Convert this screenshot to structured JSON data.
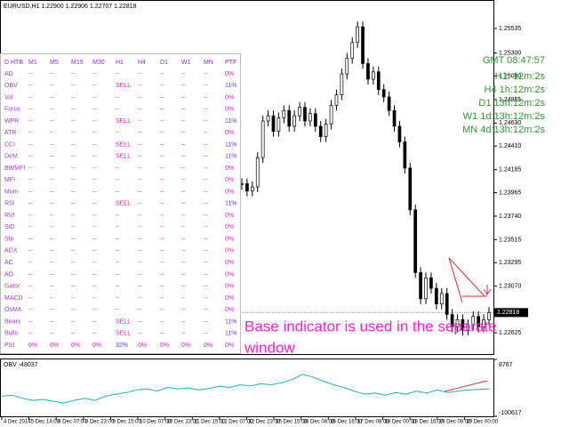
{
  "header": {
    "title": "EURUSD,H1  1.22900 1.22906 1.22707 1.22818"
  },
  "table": {
    "columns": [
      "D HTB",
      "M1",
      "M5",
      "M15",
      "M30",
      "H1",
      "H4",
      "D1",
      "W1",
      "MN",
      "PTF"
    ],
    "rows": [
      [
        "AD",
        "--",
        "--",
        "--",
        "--",
        "--",
        "--",
        "--",
        "--",
        "--",
        "0%"
      ],
      [
        "OBV",
        "--",
        "--",
        "--",
        "--",
        "SELL",
        "--",
        "--",
        "--",
        "--",
        "11%"
      ],
      [
        "Vol",
        "--",
        "--",
        "--",
        "--",
        "--",
        "--",
        "--",
        "--",
        "--",
        "0%"
      ],
      [
        "Force",
        "--",
        "--",
        "--",
        "--",
        "--",
        "--",
        "--",
        "--",
        "--",
        "0%"
      ],
      [
        "WPR",
        "--",
        "--",
        "--",
        "--",
        "SELL",
        "--",
        "--",
        "--",
        "--",
        "11%"
      ],
      [
        "ATR",
        "--",
        "--",
        "--",
        "--",
        "--",
        "--",
        "--",
        "--",
        "--",
        "0%"
      ],
      [
        "CCI",
        "--",
        "--",
        "--",
        "--",
        "SELL",
        "--",
        "--",
        "--",
        "--",
        "11%"
      ],
      [
        "DeM",
        "--",
        "--",
        "--",
        "--",
        "SELL",
        "--",
        "--",
        "--",
        "--",
        "11%"
      ],
      [
        "BWMFI",
        "--",
        "--",
        "--",
        "--",
        "--",
        "--",
        "--",
        "--",
        "--",
        "0%"
      ],
      [
        "MFI",
        "--",
        "--",
        "--",
        "--",
        "--",
        "--",
        "--",
        "--",
        "--",
        "0%"
      ],
      [
        "Mom",
        "--",
        "--",
        "--",
        "--",
        "--",
        "--",
        "--",
        "--",
        "--",
        "0%"
      ],
      [
        "RSI",
        "--",
        "--",
        "--",
        "--",
        "SELL",
        "--",
        "--",
        "--",
        "--",
        "11%"
      ],
      [
        "RVI",
        "--",
        "--",
        "--",
        "--",
        "--",
        "--",
        "--",
        "--",
        "--",
        "0%"
      ],
      [
        "StD",
        "--",
        "--",
        "--",
        "--",
        "--",
        "--",
        "--",
        "--",
        "--",
        "0%"
      ],
      [
        "Sto",
        "--",
        "--",
        "--",
        "--",
        "--",
        "--",
        "--",
        "--",
        "--",
        "0%"
      ],
      [
        "ADX",
        "--",
        "--",
        "--",
        "--",
        "--",
        "--",
        "--",
        "--",
        "--",
        "0%"
      ],
      [
        "AC",
        "--",
        "--",
        "--",
        "--",
        "--",
        "--",
        "--",
        "--",
        "--",
        "0%"
      ],
      [
        "AO",
        "--",
        "--",
        "--",
        "--",
        "--",
        "--",
        "--",
        "--",
        "--",
        "0%"
      ],
      [
        "Gator",
        "--",
        "--",
        "--",
        "--",
        "--",
        "--",
        "--",
        "--",
        "--",
        "0%"
      ],
      [
        "MACD",
        "--",
        "--",
        "--",
        "--",
        "--",
        "--",
        "--",
        "--",
        "--",
        "0%"
      ],
      [
        "OsMA",
        "--",
        "--",
        "--",
        "--",
        "--",
        "--",
        "--",
        "--",
        "--",
        "0%"
      ],
      [
        "Bears",
        "--",
        "--",
        "--",
        "--",
        "SELL",
        "--",
        "--",
        "--",
        "--",
        "11%"
      ],
      [
        "Bulls",
        "--",
        "--",
        "--",
        "--",
        "SELL",
        "--",
        "--",
        "--",
        "--",
        "11%"
      ],
      [
        "PSI",
        "0%",
        "0%",
        "0%",
        "0%",
        "32%",
        "0%",
        "0%",
        "0%",
        "0%",
        "0%"
      ]
    ]
  },
  "timer": [
    "GMT 08:47:57",
    "H1: 12m:2s",
    "H4  1h:12m:2s",
    "D1  13h:12m:2s",
    "W1  1d:13h:12m:2s",
    "MN  4d:13h:12m:2s"
  ],
  "annotation": [
    "Base indicator is used in the separate",
    "window"
  ],
  "price": {
    "ylim": [
      1.22421,
      1.25688
    ],
    "yticks": [
      {
        "value": 1.22625,
        "label": "1.22625"
      },
      {
        "value": 1.2307,
        "label": "1.23070"
      },
      {
        "value": 1.23295,
        "label": "1.23295"
      },
      {
        "value": 1.23515,
        "label": "1.23515"
      },
      {
        "value": 1.2374,
        "label": "1.23740"
      },
      {
        "value": 1.23965,
        "label": "1.23965"
      },
      {
        "value": 1.24185,
        "label": "1.24185"
      },
      {
        "value": 1.2441,
        "label": "1.24410"
      },
      {
        "value": 1.2463,
        "label": "1.24630"
      },
      {
        "value": 1.24855,
        "label": "1.24855"
      },
      {
        "value": 1.2508,
        "label": "1.25080"
      },
      {
        "value": 1.253,
        "label": "1.25300"
      },
      {
        "value": 1.25535,
        "label": "1.25535"
      }
    ],
    "last": 1.22818,
    "closes": [
      1.2405,
      1.2398,
      1.2402,
      1.243,
      1.2465,
      1.247,
      1.2455,
      1.2468,
      1.2475,
      1.246,
      1.247,
      1.2478,
      1.2465,
      1.2472,
      1.246,
      1.245,
      1.2462,
      1.248,
      1.249,
      1.251,
      1.2525,
      1.254,
      1.2555,
      1.252,
      1.2505,
      1.2512,
      1.2495,
      1.2488,
      1.2475,
      1.246,
      1.2445,
      1.242,
      1.238,
      1.232,
      1.2295,
      1.2315,
      1.2305,
      1.229,
      1.23,
      1.228,
      1.2268,
      1.2275,
      1.2265,
      1.227,
      1.2278,
      1.2268,
      1.2275,
      1.22818
    ],
    "x_labels": [
      "4 Dec 2014",
      "5 Dec 14:00",
      "8 Dec 07:00",
      "8 Dec 23:00",
      "9 Dec 15:00",
      "10 Dec 07:00",
      "10 Dec 23:00",
      "11 Dec 15:00",
      "12 Dec 07:00",
      "12 Dec 23:00",
      "15 Dec 15:00",
      "16 Dec 08:00",
      "16 Dec 16:00",
      "17 Dec 08:00",
      "18 Dec 00:00",
      "18 Dec 16:00",
      "19 Dec 08:00",
      "19 Dec 00:00"
    ]
  },
  "obv": {
    "label": "OBV -48037",
    "ylim": [
      -100617,
      8767
    ],
    "yticks": [
      8767,
      -100617
    ],
    "values": [
      -62000,
      -60000,
      -66000,
      -70000,
      -68000,
      -72000,
      -75000,
      -70000,
      -66000,
      -70000,
      -62000,
      -58000,
      -55000,
      -50000,
      -48000,
      -52000,
      -45000,
      -48000,
      -46000,
      -50000,
      -47000,
      -43000,
      -45000,
      -40000,
      -42000,
      -38000,
      -40000,
      -36000,
      -30000,
      -20000,
      -25000,
      -33000,
      -40000,
      -45000,
      -52000,
      -58000,
      -56000,
      -60000,
      -55000,
      -58000,
      -52000,
      -56000,
      -50000,
      -55000,
      -52000,
      -50000,
      -49000,
      -48037
    ]
  }
}
